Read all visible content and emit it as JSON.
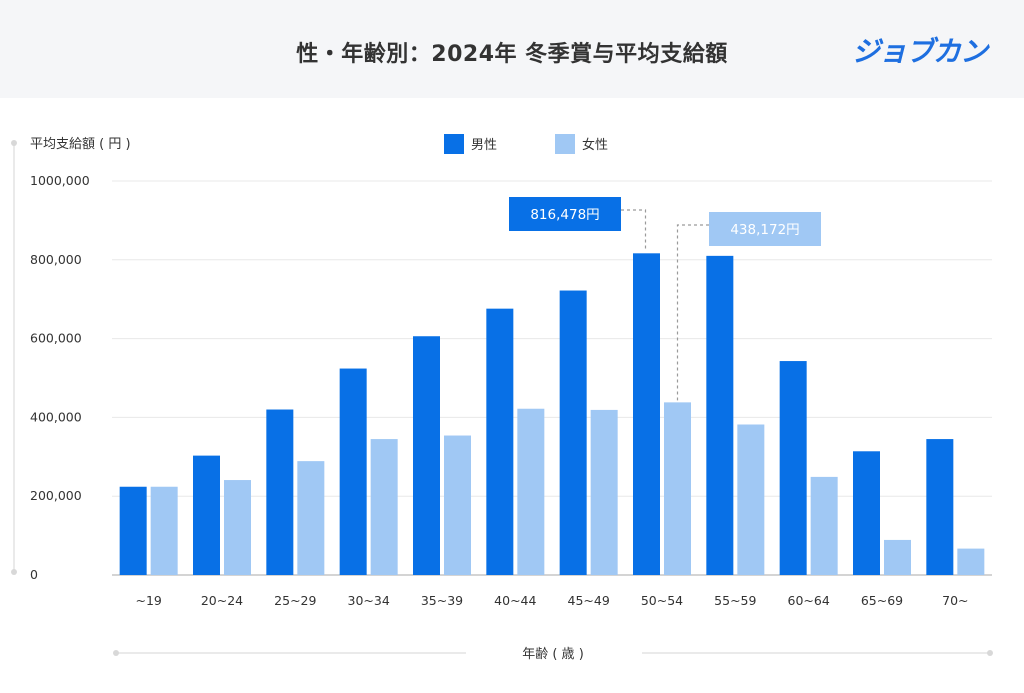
{
  "header": {
    "title": "性・年齢別：2024年 冬季賞与平均支給額",
    "logo_text": "ジョブカン"
  },
  "colors": {
    "male": "#0870e6",
    "female": "#a0c8f4",
    "grid": "#e8e8e8",
    "axis_text": "#333333",
    "header_bg": "#f5f6f8"
  },
  "chart_data": {
    "type": "bar",
    "title": "性・年齢別：2024年 冬季賞与平均支給額",
    "ylabel": "平均支給額 ( 円 )",
    "xlabel": "年齢 ( 歳 )",
    "ylim": [
      0,
      1000000
    ],
    "y_ticks": [
      {
        "value": 0,
        "label": "0"
      },
      {
        "value": 200000,
        "label": "200,000"
      },
      {
        "value": 400000,
        "label": "400,000"
      },
      {
        "value": 600000,
        "label": "600,000"
      },
      {
        "value": 800000,
        "label": "800,000"
      },
      {
        "value": 1000000,
        "label": "1000,000"
      }
    ],
    "categories": [
      "~19",
      "20~24",
      "25~29",
      "30~34",
      "35~39",
      "40~44",
      "45~49",
      "50~54",
      "55~59",
      "60~64",
      "65~69",
      "70~"
    ],
    "series": [
      {
        "name": "男性",
        "color": "#0870e6",
        "values": [
          224000,
          303000,
          420000,
          524000,
          606000,
          676000,
          722000,
          816478,
          810000,
          543000,
          314000,
          345000
        ]
      },
      {
        "name": "女性",
        "color": "#a0c8f4",
        "values": [
          224000,
          241000,
          289000,
          345000,
          354000,
          422000,
          419000,
          438172,
          382000,
          249000,
          89000,
          67000
        ]
      }
    ],
    "legend_position": "top",
    "grid": true,
    "annotations": [
      {
        "series": 0,
        "category_index": 7,
        "label": "816,478円"
      },
      {
        "series": 1,
        "category_index": 7,
        "label": "438,172円"
      }
    ]
  }
}
